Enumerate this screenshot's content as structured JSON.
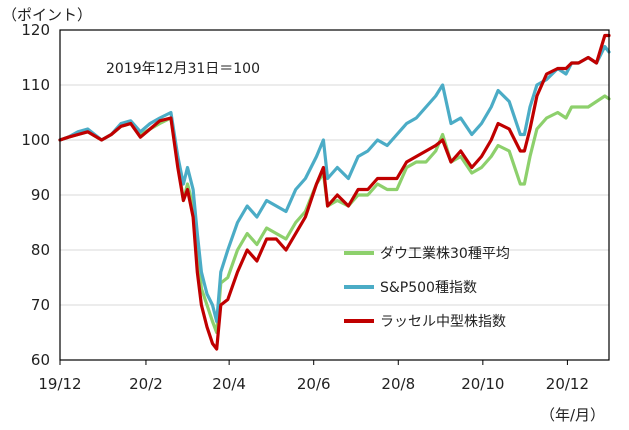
{
  "chart_data": {
    "type": "line",
    "title": "",
    "y_unit": "（ポイント）",
    "x_unit": "（年/月）",
    "annotation": "2019年12月31日＝100",
    "ylim": [
      60,
      120
    ],
    "yticks": [
      60,
      70,
      80,
      90,
      100,
      110,
      120
    ],
    "grid": true,
    "legend": "bottom-right",
    "x_range": [
      "2019-12-01",
      "2020-12-31"
    ],
    "xticks": [
      {
        "x": "2019-12-01",
        "label": "19/12"
      },
      {
        "x": "2020-02-01",
        "label": "20/2"
      },
      {
        "x": "2020-04-01",
        "label": "20/4"
      },
      {
        "x": "2020-06-01",
        "label": "20/6"
      },
      {
        "x": "2020-08-01",
        "label": "20/8"
      },
      {
        "x": "2020-10-01",
        "label": "20/10"
      },
      {
        "x": "2020-12-01",
        "label": "20/12"
      }
    ],
    "series": [
      {
        "name": "ダウ工業株30種平均",
        "color": "#8dd06c",
        "points": [
          [
            "2019-12-01",
            100
          ],
          [
            "2019-12-07",
            100.5
          ],
          [
            "2019-12-14",
            101
          ],
          [
            "2019-12-21",
            101.5
          ],
          [
            "2019-12-31",
            100
          ],
          [
            "2020-01-07",
            101
          ],
          [
            "2020-01-14",
            102.5
          ],
          [
            "2020-01-21",
            103
          ],
          [
            "2020-01-28",
            101
          ],
          [
            "2020-02-04",
            102
          ],
          [
            "2020-02-11",
            103
          ],
          [
            "2020-02-19",
            104
          ],
          [
            "2020-02-24",
            96
          ],
          [
            "2020-02-28",
            89
          ],
          [
            "2020-03-02",
            92
          ],
          [
            "2020-03-06",
            88
          ],
          [
            "2020-03-09",
            80
          ],
          [
            "2020-03-12",
            73
          ],
          [
            "2020-03-16",
            70
          ],
          [
            "2020-03-20",
            67
          ],
          [
            "2020-03-23",
            65
          ],
          [
            "2020-03-26",
            74
          ],
          [
            "2020-03-31",
            75
          ],
          [
            "2020-04-07",
            80
          ],
          [
            "2020-04-14",
            83
          ],
          [
            "2020-04-21",
            81
          ],
          [
            "2020-04-28",
            84
          ],
          [
            "2020-05-05",
            83
          ],
          [
            "2020-05-12",
            82
          ],
          [
            "2020-05-19",
            85
          ],
          [
            "2020-05-26",
            87
          ],
          [
            "2020-06-03",
            92
          ],
          [
            "2020-06-08",
            94
          ],
          [
            "2020-06-11",
            88
          ],
          [
            "2020-06-18",
            89
          ],
          [
            "2020-06-26",
            88
          ],
          [
            "2020-07-03",
            90
          ],
          [
            "2020-07-10",
            90
          ],
          [
            "2020-07-17",
            92
          ],
          [
            "2020-07-24",
            91
          ],
          [
            "2020-07-31",
            91
          ],
          [
            "2020-08-07",
            95
          ],
          [
            "2020-08-14",
            96
          ],
          [
            "2020-08-21",
            96
          ],
          [
            "2020-08-28",
            98
          ],
          [
            "2020-09-02",
            101
          ],
          [
            "2020-09-08",
            96
          ],
          [
            "2020-09-15",
            97
          ],
          [
            "2020-09-23",
            94
          ],
          [
            "2020-09-30",
            95
          ],
          [
            "2020-10-07",
            97
          ],
          [
            "2020-10-12",
            99
          ],
          [
            "2020-10-20",
            98
          ],
          [
            "2020-10-28",
            92
          ],
          [
            "2020-10-31",
            92
          ],
          [
            "2020-11-04",
            97
          ],
          [
            "2020-11-09",
            102
          ],
          [
            "2020-11-16",
            104
          ],
          [
            "2020-11-24",
            105
          ],
          [
            "2020-11-30",
            104
          ],
          [
            "2020-12-04",
            106
          ],
          [
            "2020-12-09",
            106
          ],
          [
            "2020-12-16",
            106
          ],
          [
            "2020-12-22",
            107
          ],
          [
            "2020-12-28",
            108
          ],
          [
            "2020-12-31",
            107.5
          ]
        ]
      },
      {
        "name": "S&P500種指数",
        "color": "#4bacc6",
        "points": [
          [
            "2019-12-01",
            100
          ],
          [
            "2019-12-07",
            100.5
          ],
          [
            "2019-12-14",
            101.5
          ],
          [
            "2019-12-21",
            102
          ],
          [
            "2019-12-31",
            100
          ],
          [
            "2020-01-07",
            101
          ],
          [
            "2020-01-14",
            103
          ],
          [
            "2020-01-21",
            103.5
          ],
          [
            "2020-01-28",
            101.5
          ],
          [
            "2020-02-04",
            103
          ],
          [
            "2020-02-11",
            104
          ],
          [
            "2020-02-19",
            105
          ],
          [
            "2020-02-24",
            97
          ],
          [
            "2020-02-28",
            92
          ],
          [
            "2020-03-02",
            95
          ],
          [
            "2020-03-06",
            91
          ],
          [
            "2020-03-09",
            83
          ],
          [
            "2020-03-12",
            76
          ],
          [
            "2020-03-16",
            72
          ],
          [
            "2020-03-20",
            70
          ],
          [
            "2020-03-23",
            67
          ],
          [
            "2020-03-26",
            76
          ],
          [
            "2020-03-31",
            80
          ],
          [
            "2020-04-07",
            85
          ],
          [
            "2020-04-14",
            88
          ],
          [
            "2020-04-21",
            86
          ],
          [
            "2020-04-28",
            89
          ],
          [
            "2020-05-05",
            88
          ],
          [
            "2020-05-12",
            87
          ],
          [
            "2020-05-19",
            91
          ],
          [
            "2020-05-26",
            93
          ],
          [
            "2020-06-03",
            97
          ],
          [
            "2020-06-08",
            100
          ],
          [
            "2020-06-11",
            93
          ],
          [
            "2020-06-18",
            95
          ],
          [
            "2020-06-26",
            93
          ],
          [
            "2020-07-03",
            97
          ],
          [
            "2020-07-10",
            98
          ],
          [
            "2020-07-17",
            100
          ],
          [
            "2020-07-24",
            99
          ],
          [
            "2020-07-31",
            101
          ],
          [
            "2020-08-07",
            103
          ],
          [
            "2020-08-14",
            104
          ],
          [
            "2020-08-21",
            106
          ],
          [
            "2020-08-28",
            108
          ],
          [
            "2020-09-02",
            110
          ],
          [
            "2020-09-08",
            103
          ],
          [
            "2020-09-15",
            104
          ],
          [
            "2020-09-23",
            101
          ],
          [
            "2020-09-30",
            103
          ],
          [
            "2020-10-07",
            106
          ],
          [
            "2020-10-12",
            109
          ],
          [
            "2020-10-20",
            107
          ],
          [
            "2020-10-28",
            101
          ],
          [
            "2020-10-31",
            101
          ],
          [
            "2020-11-04",
            106
          ],
          [
            "2020-11-09",
            110
          ],
          [
            "2020-11-16",
            111
          ],
          [
            "2020-11-24",
            113
          ],
          [
            "2020-11-30",
            112
          ],
          [
            "2020-12-04",
            114
          ],
          [
            "2020-12-09",
            114
          ],
          [
            "2020-12-16",
            115
          ],
          [
            "2020-12-22",
            114
          ],
          [
            "2020-12-28",
            117
          ],
          [
            "2020-12-31",
            116
          ]
        ]
      },
      {
        "name": "ラッセル中型株指数",
        "color": "#c00000",
        "points": [
          [
            "2019-12-01",
            100
          ],
          [
            "2019-12-07",
            100.5
          ],
          [
            "2019-12-14",
            101
          ],
          [
            "2019-12-21",
            101.5
          ],
          [
            "2019-12-31",
            100
          ],
          [
            "2020-01-07",
            101
          ],
          [
            "2020-01-14",
            102.5
          ],
          [
            "2020-01-21",
            103
          ],
          [
            "2020-01-28",
            100.5
          ],
          [
            "2020-02-04",
            102
          ],
          [
            "2020-02-11",
            103.5
          ],
          [
            "2020-02-19",
            104
          ],
          [
            "2020-02-24",
            95
          ],
          [
            "2020-02-28",
            89
          ],
          [
            "2020-03-02",
            91
          ],
          [
            "2020-03-06",
            86
          ],
          [
            "2020-03-09",
            76
          ],
          [
            "2020-03-12",
            70
          ],
          [
            "2020-03-16",
            66
          ],
          [
            "2020-03-20",
            63
          ],
          [
            "2020-03-23",
            62
          ],
          [
            "2020-03-26",
            70
          ],
          [
            "2020-03-31",
            71
          ],
          [
            "2020-04-07",
            76
          ],
          [
            "2020-04-14",
            80
          ],
          [
            "2020-04-21",
            78
          ],
          [
            "2020-04-28",
            82
          ],
          [
            "2020-05-05",
            82
          ],
          [
            "2020-05-12",
            80
          ],
          [
            "2020-05-19",
            83
          ],
          [
            "2020-05-26",
            86
          ],
          [
            "2020-06-03",
            92
          ],
          [
            "2020-06-08",
            95
          ],
          [
            "2020-06-11",
            88
          ],
          [
            "2020-06-18",
            90
          ],
          [
            "2020-06-26",
            88
          ],
          [
            "2020-07-03",
            91
          ],
          [
            "2020-07-10",
            91
          ],
          [
            "2020-07-17",
            93
          ],
          [
            "2020-07-24",
            93
          ],
          [
            "2020-07-31",
            93
          ],
          [
            "2020-08-07",
            96
          ],
          [
            "2020-08-14",
            97
          ],
          [
            "2020-08-21",
            98
          ],
          [
            "2020-08-28",
            99
          ],
          [
            "2020-09-02",
            100
          ],
          [
            "2020-09-08",
            96
          ],
          [
            "2020-09-15",
            98
          ],
          [
            "2020-09-23",
            95
          ],
          [
            "2020-09-30",
            97
          ],
          [
            "2020-10-07",
            100
          ],
          [
            "2020-10-12",
            103
          ],
          [
            "2020-10-20",
            102
          ],
          [
            "2020-10-28",
            98
          ],
          [
            "2020-10-31",
            98
          ],
          [
            "2020-11-04",
            102
          ],
          [
            "2020-11-09",
            108
          ],
          [
            "2020-11-16",
            112
          ],
          [
            "2020-11-24",
            113
          ],
          [
            "2020-11-30",
            113
          ],
          [
            "2020-12-04",
            114
          ],
          [
            "2020-12-09",
            114
          ],
          [
            "2020-12-16",
            115
          ],
          [
            "2020-12-22",
            114
          ],
          [
            "2020-12-28",
            119
          ],
          [
            "2020-12-31",
            119
          ]
        ]
      }
    ]
  }
}
